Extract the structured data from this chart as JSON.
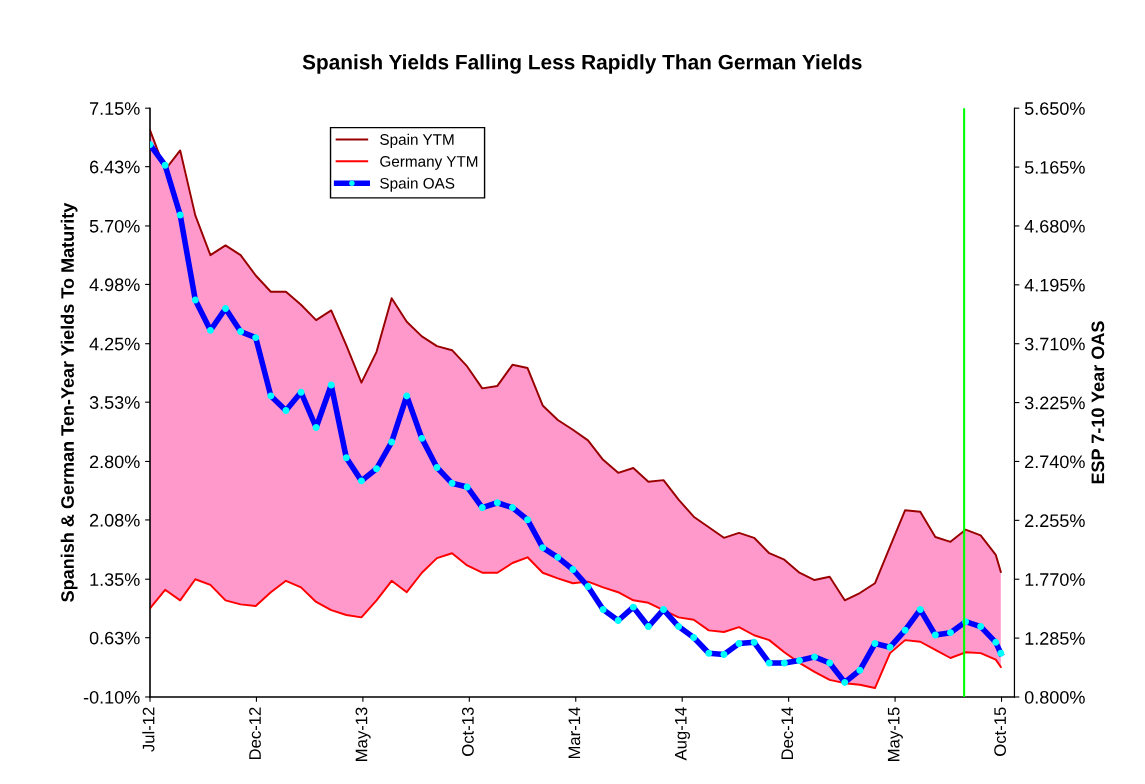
{
  "chart_data": {
    "type": "line",
    "title": "Spanish Yields Falling Less Rapidly Than German Yields",
    "ylabel": "Spanish & German Ten-Year Yields To Maturity",
    "y2label": "ESP 7-10 Year OAS",
    "x": [
      "2012-07-24",
      "2012-08-14",
      "2012-09-04",
      "2012-09-25",
      "2012-10-16",
      "2012-11-06",
      "2012-11-27",
      "2012-12-18",
      "2013-01-08",
      "2013-01-29",
      "2013-02-19",
      "2013-03-12",
      "2013-04-02",
      "2013-04-23",
      "2013-05-14",
      "2013-06-04",
      "2013-06-25",
      "2013-07-16",
      "2013-08-06",
      "2013-08-27",
      "2013-09-17",
      "2013-10-08",
      "2013-10-29",
      "2013-11-19",
      "2013-12-10",
      "2013-12-31",
      "2014-01-21",
      "2014-02-11",
      "2014-03-04",
      "2014-03-25",
      "2014-04-15",
      "2014-05-06",
      "2014-05-27",
      "2014-06-17",
      "2014-07-08",
      "2014-07-29",
      "2014-08-19",
      "2014-09-09",
      "2014-09-30",
      "2014-10-21",
      "2014-11-11",
      "2014-12-02",
      "2014-12-23",
      "2015-01-13",
      "2015-02-03",
      "2015-02-24",
      "2015-03-17",
      "2015-04-07",
      "2015-04-28",
      "2015-05-19",
      "2015-06-09",
      "2015-06-30",
      "2015-07-21",
      "2015-08-11",
      "2015-09-01",
      "2015-09-22",
      "2015-10-13",
      "2015-10-20"
    ],
    "series": [
      {
        "name": "Spain YTM",
        "color": "#990000",
        "values": [
          6.88,
          6.39,
          6.63,
          5.83,
          5.34,
          5.46,
          5.34,
          5.09,
          4.89,
          4.89,
          4.73,
          4.54,
          4.66,
          4.23,
          3.77,
          4.15,
          4.81,
          4.52,
          4.34,
          4.22,
          4.17,
          3.97,
          3.7,
          3.73,
          3.99,
          3.95,
          3.49,
          3.31,
          3.19,
          3.06,
          2.82,
          2.66,
          2.72,
          2.55,
          2.57,
          2.33,
          2.12,
          1.99,
          1.86,
          1.92,
          1.86,
          1.67,
          1.59,
          1.43,
          1.34,
          1.38,
          1.09,
          1.18,
          1.3,
          1.75,
          2.2,
          2.18,
          1.87,
          1.81,
          1.96,
          1.89,
          1.65,
          1.44
        ],
        "lower": [
          0.99,
          1.22,
          1.09,
          1.35,
          1.28,
          1.09,
          1.04,
          1.02,
          1.19,
          1.33,
          1.25,
          1.07,
          0.97,
          0.91,
          0.88,
          1.09,
          1.33,
          1.19,
          1.43,
          1.61,
          1.67,
          1.52,
          1.43,
          1.43,
          1.55,
          1.62,
          1.43,
          1.36,
          1.3,
          1.32,
          1.25,
          1.19,
          1.09,
          1.06,
          0.97,
          0.88,
          0.85,
          0.72,
          0.7,
          0.76,
          0.66,
          0.6,
          0.45,
          0.32,
          0.21,
          0.11,
          0.07,
          0.05,
          0.01,
          0.44,
          0.6,
          0.58,
          0.48,
          0.38,
          0.45,
          0.44,
          0.36,
          0.27
        ],
        "upper": [
          6.88,
          6.39,
          6.63,
          5.83,
          5.34,
          5.46,
          5.34,
          5.09,
          4.89,
          4.89,
          4.73,
          4.54,
          4.66,
          4.23,
          3.77,
          4.15,
          4.81,
          4.52,
          4.34,
          4.22,
          4.17,
          3.97,
          3.7,
          3.73,
          3.99,
          3.95,
          3.49,
          3.31,
          3.19,
          3.06,
          2.82,
          2.66,
          2.72,
          2.55,
          2.57,
          2.33,
          2.12,
          1.99,
          1.86,
          1.92,
          1.86,
          1.67,
          1.59,
          1.43,
          1.34,
          1.38,
          1.09,
          1.18,
          1.3,
          1.75,
          2.2,
          2.18,
          1.87,
          1.81,
          1.96,
          1.89,
          1.65,
          1.44
        ]
      },
      {
        "name": "Germany YTM",
        "color": "#ff0000",
        "values": [
          0.99,
          1.22,
          1.09,
          1.35,
          1.28,
          1.09,
          1.04,
          1.02,
          1.19,
          1.33,
          1.25,
          1.07,
          0.97,
          0.91,
          0.88,
          1.09,
          1.33,
          1.19,
          1.43,
          1.61,
          1.67,
          1.52,
          1.43,
          1.43,
          1.55,
          1.62,
          1.43,
          1.36,
          1.3,
          1.32,
          1.25,
          1.19,
          1.09,
          1.06,
          0.97,
          0.88,
          0.85,
          0.72,
          0.7,
          0.76,
          0.66,
          0.6,
          0.45,
          0.32,
          0.21,
          0.11,
          0.07,
          0.05,
          0.01,
          0.44,
          0.6,
          0.58,
          0.48,
          0.38,
          0.45,
          0.44,
          0.36,
          0.27
        ]
      },
      {
        "name": "Spain OAS",
        "color": "#0000ff",
        "axis": "y2",
        "marker": "circle",
        "values": [
          5.35,
          5.18,
          4.77,
          4.07,
          3.82,
          4.0,
          3.81,
          3.76,
          3.28,
          3.16,
          3.31,
          3.02,
          3.37,
          2.77,
          2.58,
          2.68,
          2.9,
          3.28,
          2.93,
          2.69,
          2.56,
          2.53,
          2.36,
          2.4,
          2.36,
          2.26,
          2.03,
          1.95,
          1.85,
          1.71,
          1.52,
          1.43,
          1.54,
          1.38,
          1.52,
          1.38,
          1.29,
          1.16,
          1.15,
          1.24,
          1.25,
          1.08,
          1.08,
          1.1,
          1.13,
          1.08,
          0.92,
          1.02,
          1.24,
          1.21,
          1.35,
          1.52,
          1.31,
          1.33,
          1.42,
          1.38,
          1.25,
          1.16
        ]
      }
    ],
    "xlim": [
      "2012-07-24",
      "2015-11-08"
    ],
    "xticks": [
      {
        "value": "2012-07-24",
        "label": "Jul-12"
      },
      {
        "value": "2012-12-19",
        "label": "Dec-12"
      },
      {
        "value": "2013-05-16",
        "label": "May-13"
      },
      {
        "value": "2013-10-11",
        "label": "Oct-13"
      },
      {
        "value": "2014-03-08",
        "label": "Mar-14"
      },
      {
        "value": "2014-08-03",
        "label": "Aug-14"
      },
      {
        "value": "2014-12-29",
        "label": "Dec-14"
      },
      {
        "value": "2015-05-26",
        "label": "May-15"
      },
      {
        "value": "2015-10-21",
        "label": "Oct-15"
      }
    ],
    "ylim": [
      -0.1,
      7.15
    ],
    "yticks": [
      {
        "value": -0.1,
        "label": "-0.10%"
      },
      {
        "value": 0.63,
        "label": "0.63%"
      },
      {
        "value": 1.35,
        "label": "1.35%"
      },
      {
        "value": 2.08,
        "label": "2.08%"
      },
      {
        "value": 2.8,
        "label": "2.80%"
      },
      {
        "value": 3.53,
        "label": "3.53%"
      },
      {
        "value": 4.25,
        "label": "4.25%"
      },
      {
        "value": 4.98,
        "label": "4.98%"
      },
      {
        "value": 5.7,
        "label": "5.70%"
      },
      {
        "value": 6.43,
        "label": "6.43%"
      },
      {
        "value": 7.15,
        "label": "7.15%"
      }
    ],
    "y2lim": [
      0.8,
      5.65
    ],
    "y2ticks": [
      {
        "value": 0.8,
        "label": "0.800%"
      },
      {
        "value": 1.285,
        "label": "1.285%"
      },
      {
        "value": 1.77,
        "label": "1.770%"
      },
      {
        "value": 2.255,
        "label": "2.255%"
      },
      {
        "value": 2.74,
        "label": "2.740%"
      },
      {
        "value": 3.225,
        "label": "3.225%"
      },
      {
        "value": 3.71,
        "label": "3.710%"
      },
      {
        "value": 4.195,
        "label": "4.195%"
      },
      {
        "value": 4.68,
        "label": "4.680%"
      },
      {
        "value": 5.165,
        "label": "5.165%"
      },
      {
        "value": 5.65,
        "label": "5.650%"
      }
    ],
    "ref_lines": [
      {
        "axis": "x",
        "value": "2015-08-30",
        "color": "#00ff00"
      }
    ],
    "legend": "top left",
    "grid": false
  }
}
